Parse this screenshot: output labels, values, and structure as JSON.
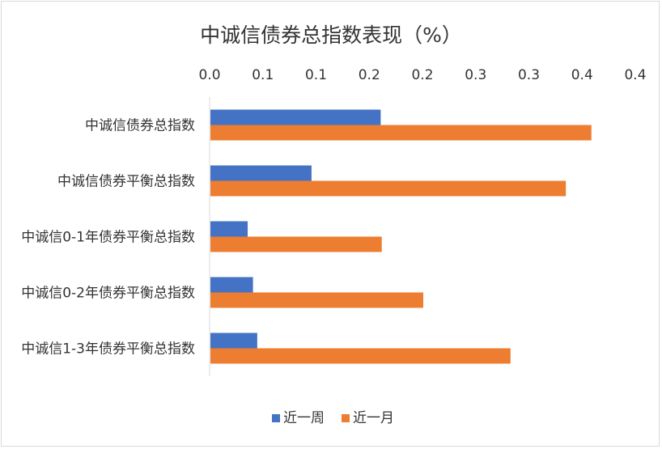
{
  "chart_data": {
    "type": "bar",
    "orientation": "horizontal",
    "title": "中诚信债券总指数表现（%）",
    "x_tick_labels": [
      "0.0",
      "0.1",
      "0.1",
      "0.2",
      "0.2",
      "0.3",
      "0.3",
      "0.4",
      "0.4"
    ],
    "xlim": [
      0,
      0.4
    ],
    "x_axis_position": "top",
    "categories": [
      "中诚信债券总指数",
      "中诚信债券平衡总指数",
      "中诚信0-1年债券平衡总指数",
      "中诚信0-2年债券平衡总指数",
      "中诚信1-3年债券平衡总指数"
    ],
    "series": [
      {
        "name": "近一周",
        "color": "#4472C4",
        "values": [
          0.16,
          0.095,
          0.035,
          0.04,
          0.044
        ]
      },
      {
        "name": "近一月",
        "color": "#ED7D31",
        "values": [
          0.358,
          0.334,
          0.161,
          0.2,
          0.282
        ]
      }
    ],
    "grid": false,
    "legend_position": "bottom"
  }
}
